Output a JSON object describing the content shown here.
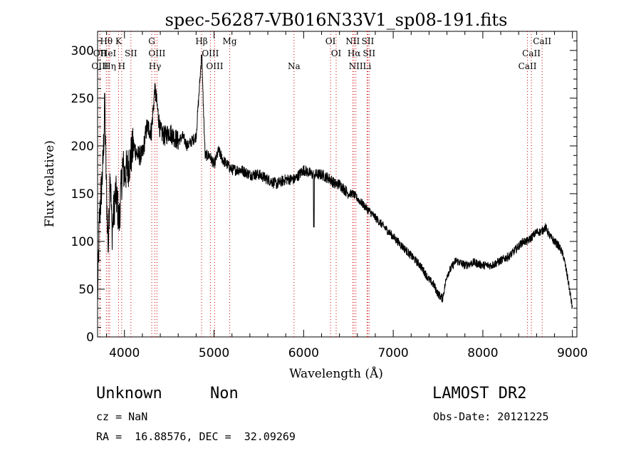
{
  "chart_data": {
    "type": "line",
    "title": "spec-56287-VB016N33V1_sp08-191.fits",
    "xlabel": "Wavelength (Å)",
    "ylabel": "Flux (relative)",
    "xlim": [
      3700,
      9050
    ],
    "ylim": [
      0,
      320
    ],
    "xticks": [
      4000,
      5000,
      6000,
      7000,
      8000,
      9000
    ],
    "yticks": [
      0,
      50,
      100,
      150,
      200,
      250,
      300
    ],
    "grid": false,
    "line_color": "#000000",
    "marker_color": "#cc0000",
    "spectrum": {
      "x": [
        3700,
        3720,
        3740,
        3760,
        3780,
        3800,
        3820,
        3840,
        3860,
        3880,
        3900,
        3920,
        3940,
        3960,
        3980,
        4000,
        4050,
        4100,
        4150,
        4200,
        4250,
        4300,
        4340,
        4400,
        4450,
        4500,
        4550,
        4600,
        4650,
        4700,
        4750,
        4800,
        4861,
        4900,
        4950,
        5000,
        5050,
        5100,
        5150,
        5200,
        5300,
        5400,
        5500,
        5600,
        5700,
        5800,
        5900,
        6000,
        6100,
        6200,
        6300,
        6350,
        6400,
        6450,
        6500,
        6550,
        6600,
        6650,
        6700,
        6750,
        6800,
        6850,
        6900,
        6950,
        7000,
        7050,
        7100,
        7150,
        7200,
        7300,
        7400,
        7450,
        7500,
        7550,
        7600,
        7700,
        7800,
        7900,
        8000,
        8100,
        8200,
        8300,
        8400,
        8450,
        8500,
        8550,
        8600,
        8650,
        8700,
        8750,
        8800,
        8850,
        8900,
        8950,
        9000
      ],
      "y": [
        40,
        120,
        150,
        180,
        240,
        150,
        90,
        180,
        110,
        130,
        150,
        140,
        120,
        150,
        180,
        170,
        180,
        200,
        190,
        190,
        220,
        215,
        260,
        215,
        210,
        215,
        210,
        205,
        210,
        200,
        205,
        210,
        295,
        190,
        190,
        180,
        195,
        185,
        180,
        175,
        175,
        170,
        170,
        165,
        160,
        165,
        165,
        175,
        170,
        170,
        165,
        160,
        160,
        155,
        150,
        150,
        145,
        140,
        135,
        130,
        125,
        120,
        115,
        110,
        105,
        100,
        95,
        90,
        85,
        75,
        60,
        55,
        45,
        40,
        65,
        80,
        75,
        78,
        75,
        75,
        80,
        85,
        95,
        100,
        100,
        105,
        110,
        110,
        115,
        105,
        100,
        95,
        85,
        60,
        30
      ]
    },
    "lines": [
      {
        "label": "Hθ",
        "x": 3798
      },
      {
        "label": "K",
        "x": 3934
      },
      {
        "label": "OII",
        "x": 3727
      },
      {
        "label": "HeI",
        "x": 3820
      },
      {
        "label": "SII",
        "x": 4072
      },
      {
        "label": "OIII",
        "x": 3727
      },
      {
        "label": "Hη",
        "x": 3835
      },
      {
        "label": "H",
        "x": 3969
      },
      {
        "label": "G",
        "x": 4305
      },
      {
        "label": "OIII",
        "x": 4363
      },
      {
        "label": "Hγ",
        "x": 4340
      },
      {
        "label": "Hβ",
        "x": 4861
      },
      {
        "label": "OIII",
        "x": 4959
      },
      {
        "label": "OIII",
        "x": 5007
      },
      {
        "label": "Mg",
        "x": 5175
      },
      {
        "label": "Na",
        "x": 5893
      },
      {
        "label": "OI",
        "x": 6300
      },
      {
        "label": "OI",
        "x": 6363
      },
      {
        "label": "NII",
        "x": 6548
      },
      {
        "label": "Hα",
        "x": 6563
      },
      {
        "label": "NII",
        "x": 6583
      },
      {
        "label": "SII",
        "x": 6716
      },
      {
        "label": "SII",
        "x": 6731
      },
      {
        "label": "Li",
        "x": 6708
      },
      {
        "label": "CaII",
        "x": 8498
      },
      {
        "label": "CaII",
        "x": 8542
      },
      {
        "label": "CaII",
        "x": 8662
      }
    ],
    "label_rows": [
      [
        {
          "text": "Hθ",
          "x": 3798
        },
        {
          "text": "K",
          "x": 3934
        },
        {
          "text": "G",
          "x": 4305
        },
        {
          "text": "Hβ",
          "x": 4861
        },
        {
          "text": "Mg",
          "x": 5175
        },
        {
          "text": "OI",
          "x": 6300
        },
        {
          "text": "NII",
          "x": 6548
        },
        {
          "text": "SII",
          "x": 6716
        },
        {
          "text": "CaII",
          "x": 8662
        }
      ],
      [
        {
          "text": "OII",
          "x": 3727
        },
        {
          "text": "HeI",
          "x": 3820
        },
        {
          "text": "SII",
          "x": 4072
        },
        {
          "text": "OIII",
          "x": 4363
        },
        {
          "text": "OIII",
          "x": 4959
        },
        {
          "text": "OI",
          "x": 6363
        },
        {
          "text": "Hα",
          "x": 6563
        },
        {
          "text": "SII",
          "x": 6731
        },
        {
          "text": "CaII",
          "x": 8542
        }
      ],
      [
        {
          "text": "OIII",
          "x": 3727
        },
        {
          "text": "Hη",
          "x": 3835
        },
        {
          "text": "H",
          "x": 3969
        },
        {
          "text": "Hγ",
          "x": 4340
        },
        {
          "text": "OIII",
          "x": 5007
        },
        {
          "text": "Na",
          "x": 5893
        },
        {
          "text": "NII",
          "x": 6583
        },
        {
          "text": "Li",
          "x": 6708
        },
        {
          "text": "CaII",
          "x": 8498
        }
      ]
    ]
  },
  "info": {
    "class": "Unknown",
    "subclass": "Non",
    "survey": "LAMOST DR2",
    "cz": "cz = NaN",
    "obs_date": "Obs-Date: 20121225",
    "radec": "RA =  16.88576, DEC =  32.09269"
  }
}
